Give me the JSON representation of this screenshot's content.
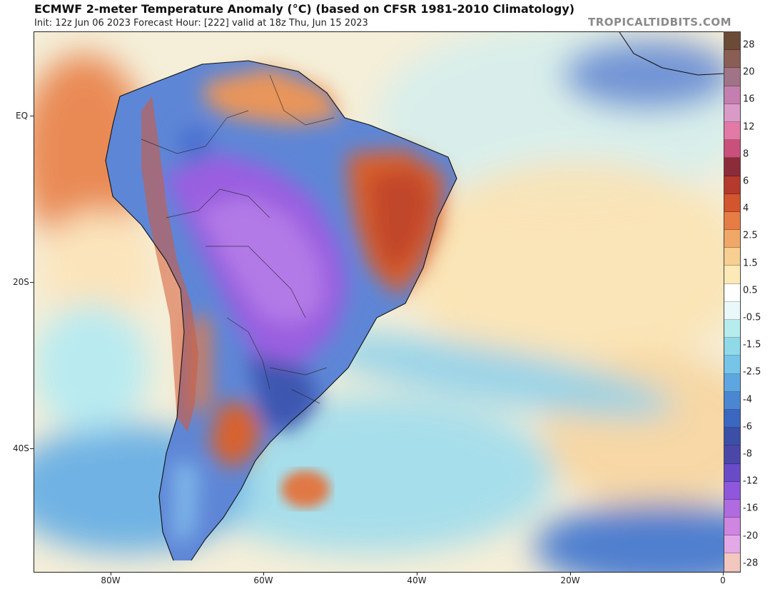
{
  "header": {
    "title": "ECMWF 2-meter Temperature Anomaly (°C) (based on CFSR 1981-2010 Climatology)",
    "subtitle": "Init: 12z Jun 06 2023   Forecast Hour: [222]   valid at 18z Thu, Jun 15 2023",
    "brand": "TROPICALTIDBITS.COM"
  },
  "map": {
    "lat_labels": [
      "EQ",
      "20S",
      "40S"
    ],
    "lon_labels": [
      "80W",
      "60W",
      "40W",
      "20W",
      "0"
    ]
  },
  "colorbar": {
    "labels": [
      "28",
      "20",
      "16",
      "12",
      "8",
      "6",
      "4",
      "2.5",
      "1.5",
      "0.5",
      "-0.5",
      "-1.5",
      "-2.5",
      "-4",
      "-6",
      "-8",
      "-12",
      "-16",
      "-20",
      "-28"
    ],
    "colors": [
      "#6b4a36",
      "#8a5e55",
      "#a07386",
      "#c27fb0",
      "#d99ac7",
      "#e37aa6",
      "#c9507a",
      "#8c2b3a",
      "#b33a2c",
      "#d2552d",
      "#e57d45",
      "#f0a868",
      "#f7cf92",
      "#fbe9b8",
      "#ffffff",
      "#eaf8fa",
      "#b7ecef",
      "#8fd9e8",
      "#76c4e8",
      "#5ea6e0",
      "#4b86d3",
      "#3c67c0",
      "#3b4fa6",
      "#4a47a8",
      "#6a4bc7",
      "#8f57dc",
      "#b06be0",
      "#cf86e0",
      "#e2a9e6",
      "#f1c7c0"
    ]
  }
}
